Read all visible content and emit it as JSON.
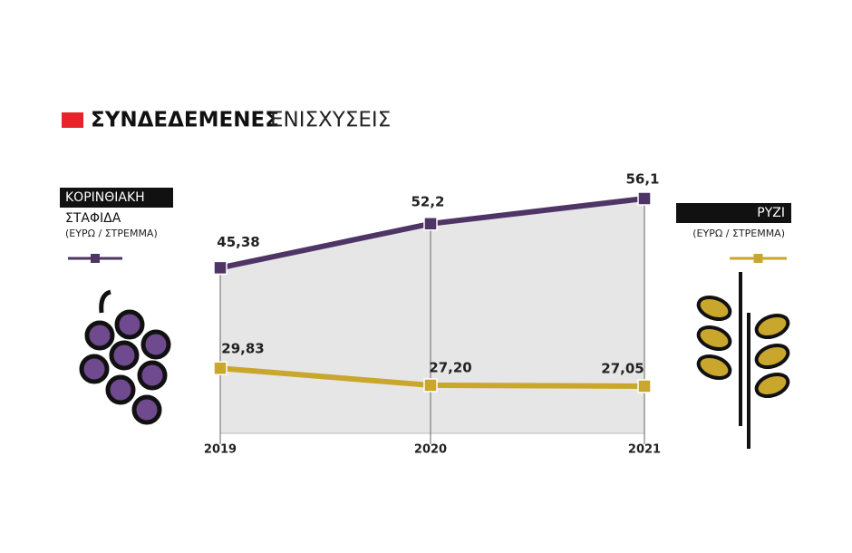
{
  "chart_data": {
    "type": "line",
    "title_parts": [
      "ΣΥΝΔΕΔΕΜΕΝΕΣ",
      "ΕΝΙΣΧΥΣΕΙΣ"
    ],
    "categories": [
      "2019",
      "2020",
      "2021"
    ],
    "series": [
      {
        "name": "ΚΟΡΙΝΘΙΑΚΗ",
        "name_line2": "ΣΤΑΦΙΔΑ",
        "unit": "(ΕΥΡΩ / ΣΤΡΕΜΜΑ)",
        "color": "#4f3566",
        "values": [
          45.38,
          52.2,
          56.1
        ],
        "value_labels": [
          "45,38",
          "52,2",
          "56,1"
        ]
      },
      {
        "name": "ΡΥΖΙ",
        "unit": "(ΕΥΡΩ / ΣΤΡΕΜΜΑ)",
        "color": "#c9a62c",
        "values": [
          29.83,
          27.2,
          27.05
        ],
        "value_labels": [
          "29,83",
          "27,20",
          "27,05"
        ]
      }
    ]
  }
}
